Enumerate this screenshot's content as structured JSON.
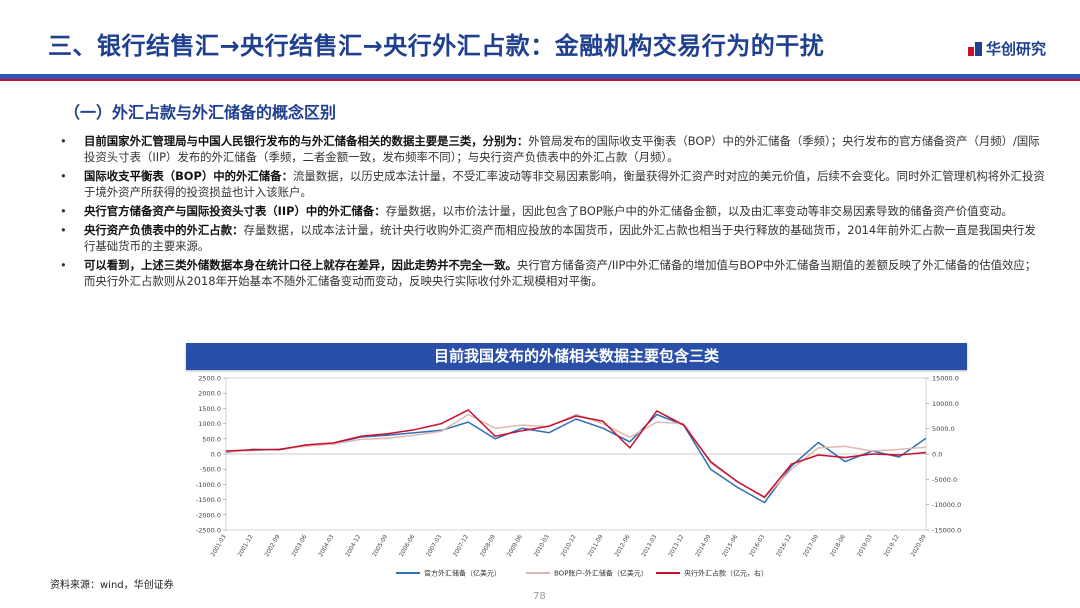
{
  "header": {
    "title": "三、银行结售汇→央行结售汇→央行外汇占款：金融机构交易行为的干扰",
    "logo_text": "华创研究"
  },
  "section": {
    "subtitle": "（一）外汇占款与外汇储备的概念区别"
  },
  "bullets": [
    {
      "bold": "目前国家外汇管理局与中国人民银行发布的与外汇储备相关的数据主要是三类，分别为：",
      "text": "外管局发布的国际收支平衡表（BOP）中的外汇储备（季频）；央行发布的官方储备资产（月频）/国际投资头寸表（IIP）发布的外汇储备（季频，二者金额一致，发布频率不同）；与央行资产负债表中的外汇占款（月频）。"
    },
    {
      "bold": "国际收支平衡表（BOP）中的外汇储备：",
      "text": "流量数据，以历史成本法计量，不受汇率波动等非交易因素影响，衡量获得外汇资产时对应的美元价值，后续不会变化。同时外汇管理机构将外汇投资于境外资产所获得的投资损益也计入该账户。"
    },
    {
      "bold": "央行官方储备资产与国际投资头寸表（IIP）中的外汇储备：",
      "text": "存量数据，以市价法计量，因此包含了BOP账户中的外汇储备金额，以及由汇率变动等非交易因素导致的储备资产价值变动。"
    },
    {
      "bold": "央行资产负债表中的外汇占款：",
      "text": "存量数据，以成本法计量，统计央行收购外汇资产而相应投放的本国货币，因此外汇占款也相当于央行释放的基础货币，2014年前外汇占款一直是我国央行发行基础货币的主要来源。"
    },
    {
      "bold": "可以看到，上述三类外储数据本身在统计口径上就存在差异，因此走势并不完全一致。",
      "text": "央行官方储备资产/IIP中外汇储备的增加值与BOP中外汇储备当期值的差额反映了外汇储备的估值效应；而央行外汇占款则从2018年开始基本不随外汇储备变动而变动，反映央行实际收付外汇规模相对平衡。"
    }
  ],
  "bullet_symbol": "•",
  "chart_banner": "目前我国发布的外储相关数据主要包含三类",
  "chart_data": {
    "type": "line",
    "x": [
      "2001-03",
      "2001-12",
      "2002-09",
      "2003-06",
      "2004-03",
      "2004-12",
      "2005-09",
      "2006-06",
      "2007-03",
      "2007-12",
      "2008-09",
      "2009-06",
      "2010-03",
      "2010-12",
      "2011-09",
      "2012-06",
      "2013-03",
      "2013-12",
      "2014-09",
      "2015-06",
      "2016-03",
      "2016-12",
      "2017-09",
      "2018-06",
      "2019-03",
      "2019-12",
      "2020-09"
    ],
    "y_left": {
      "min": -2500,
      "max": 2500,
      "ticks": [
        "2500.0",
        "2000.0",
        "1500.0",
        "1000.0",
        "500.0",
        "0.0",
        "-500.0",
        "-1000.0",
        "-1500.0",
        "-2000.0",
        "-2500.0"
      ]
    },
    "y_right": {
      "min": -15000,
      "max": 15000,
      "ticks": [
        "15000.0",
        "10000.0",
        "5000.0",
        "0.0",
        "-5000.0",
        "-10000.0",
        "-15000.0"
      ]
    },
    "series": [
      {
        "name": "官方外汇储备（亿美元）",
        "axis": "left",
        "color": "#2e6fb6",
        "values": [
          60,
          150,
          140,
          300,
          350,
          560,
          620,
          700,
          780,
          1050,
          500,
          850,
          700,
          1150,
          850,
          400,
          1300,
          950,
          -500,
          -1100,
          -1600,
          -400,
          380,
          -250,
          100,
          -100,
          520
        ]
      },
      {
        "name": "BOP账户-外汇储备（亿美元）",
        "axis": "left",
        "color": "#e0b8b0",
        "values": [
          80,
          120,
          160,
          260,
          330,
          480,
          520,
          620,
          750,
          1300,
          850,
          950,
          900,
          1300,
          1000,
          550,
          1050,
          1000,
          -300,
          -900,
          -1450,
          -500,
          200,
          250,
          100,
          150,
          220
        ]
      },
      {
        "name": "央行外汇占款（亿元，右）",
        "axis": "right",
        "color": "#c8102e",
        "values": [
          600,
          800,
          900,
          1800,
          2200,
          3500,
          4000,
          4800,
          6000,
          8700,
          3500,
          4600,
          5500,
          7500,
          6500,
          1200,
          8500,
          5700,
          -1500,
          -5500,
          -8500,
          -2000,
          -200,
          -700,
          0,
          -200,
          300
        ]
      }
    ]
  },
  "source": "资料来源：wind，华创证券",
  "page_number": "78"
}
